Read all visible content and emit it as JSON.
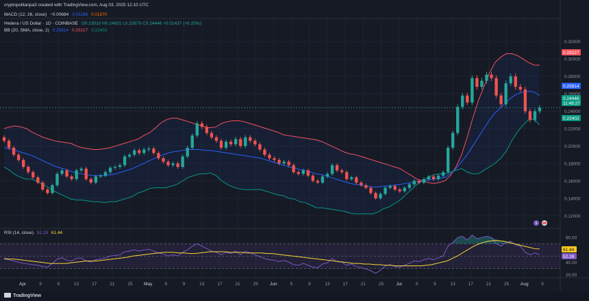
{
  "header": {
    "credit": "cryptopolitanpa3 created with TradingView.com, Aug 03, 2025 12:10 UTC"
  },
  "macd": {
    "title": "MACD (12, 26, close)",
    "v1": "−0.00684",
    "v2": "0.01186",
    "v3": "0.01870"
  },
  "symbol": {
    "title": "Hedera / US Dollar · 1D · COINBASE",
    "ohlc": "O0.23010  H0.24831  L0.22679  C0.24446  +0.01437 (+6.25%)"
  },
  "bb": {
    "title": "BB (20, SMA, close, 2)",
    "basis": "0.25814",
    "upper": "0.29227",
    "lower": "0.22402"
  },
  "rsi": {
    "title": "RSI (14, close)",
    "value": "52.28",
    "ma": "61.44"
  },
  "price_tags": {
    "upper": "0.29227",
    "basis": "0.25814",
    "last": "0.24446",
    "countdown": "11:49:27",
    "lower": "0.22402"
  },
  "rsi_tags": {
    "ma": "61.44",
    "value": "52.28"
  },
  "footer": {
    "brand": "TradingView"
  },
  "colors": {
    "up": "#26a69a",
    "down": "#ef5350",
    "basis": "#2962ff",
    "upper": "#f7525f",
    "lower": "#089981",
    "rsi": "#7e57c2",
    "rsi_ma": "#fdd835"
  },
  "chart_data": {
    "type": "candlestick",
    "price_axis": {
      "ticks": [
        0.12,
        0.14,
        0.16,
        0.18,
        0.2,
        0.22,
        0.24,
        0.26,
        0.28,
        0.3,
        0.32
      ],
      "range": [
        0.11,
        0.33
      ]
    },
    "rsi_axis": {
      "ticks": [
        20,
        40,
        60,
        80
      ],
      "range": [
        17,
        88
      ],
      "band": [
        30,
        70
      ]
    },
    "x_labels": [
      "Apr",
      "5",
      "9",
      "13",
      "17",
      "21",
      "25",
      "May",
      "5",
      "9",
      "13",
      "17",
      "21",
      "25",
      "Jun",
      "5",
      "9",
      "13",
      "17",
      "21",
      "25",
      "Jul",
      "5",
      "9",
      "13",
      "17",
      "21",
      "25",
      "Aug",
      "5"
    ],
    "close": [
      0.206,
      0.198,
      0.19,
      0.184,
      0.176,
      0.17,
      0.164,
      0.158,
      0.15,
      0.146,
      0.155,
      0.168,
      0.172,
      0.165,
      0.162,
      0.172,
      0.174,
      0.162,
      0.158,
      0.165,
      0.166,
      0.17,
      0.175,
      0.176,
      0.178,
      0.188,
      0.19,
      0.195,
      0.192,
      0.196,
      0.197,
      0.192,
      0.186,
      0.182,
      0.178,
      0.18,
      0.176,
      0.188,
      0.198,
      0.212,
      0.226,
      0.222,
      0.215,
      0.21,
      0.206,
      0.198,
      0.205,
      0.202,
      0.208,
      0.2,
      0.21,
      0.206,
      0.202,
      0.196,
      0.19,
      0.186,
      0.184,
      0.18,
      0.182,
      0.178,
      0.17,
      0.168,
      0.172,
      0.166,
      0.16,
      0.158,
      0.165,
      0.168,
      0.178,
      0.172,
      0.17,
      0.162,
      0.164,
      0.158,
      0.155,
      0.152,
      0.146,
      0.14,
      0.145,
      0.152,
      0.154,
      0.15,
      0.148,
      0.152,
      0.156,
      0.16,
      0.158,
      0.162,
      0.165,
      0.162,
      0.166,
      0.17,
      0.198,
      0.215,
      0.245,
      0.258,
      0.25,
      0.278,
      0.268,
      0.275,
      0.282,
      0.278,
      0.258,
      0.248,
      0.272,
      0.28,
      0.268,
      0.265,
      0.24,
      0.23,
      0.24,
      0.244
    ],
    "bb_upper": [
      0.22,
      0.222,
      0.223,
      0.222,
      0.22,
      0.216,
      0.213,
      0.21,
      0.208,
      0.206,
      0.205,
      0.204,
      0.203,
      0.2,
      0.198,
      0.197,
      0.196,
      0.196,
      0.197,
      0.198,
      0.2,
      0.202,
      0.204,
      0.206,
      0.208,
      0.212,
      0.215,
      0.22,
      0.226,
      0.23,
      0.232,
      0.232,
      0.23,
      0.228,
      0.226,
      0.224,
      0.222,
      0.221,
      0.222,
      0.226,
      0.228,
      0.229,
      0.229,
      0.228,
      0.226,
      0.224,
      0.222,
      0.22,
      0.218,
      0.216,
      0.213,
      0.212,
      0.211,
      0.21,
      0.209,
      0.208,
      0.207,
      0.205,
      0.202,
      0.199,
      0.196,
      0.193,
      0.191,
      0.19,
      0.188,
      0.186,
      0.184,
      0.182,
      0.18,
      0.178,
      0.176,
      0.174,
      0.17,
      0.166,
      0.162,
      0.16,
      0.158,
      0.157,
      0.158,
      0.16,
      0.166,
      0.176,
      0.19,
      0.21,
      0.232,
      0.252,
      0.268,
      0.284,
      0.296,
      0.302,
      0.306,
      0.306,
      0.304,
      0.3,
      0.296,
      0.293,
      0.293
    ],
    "bb_basis": [
      0.198,
      0.197,
      0.195,
      0.193,
      0.191,
      0.189,
      0.186,
      0.183,
      0.18,
      0.177,
      0.175,
      0.173,
      0.171,
      0.169,
      0.168,
      0.167,
      0.166,
      0.166,
      0.166,
      0.167,
      0.168,
      0.17,
      0.172,
      0.174,
      0.177,
      0.18,
      0.183,
      0.186,
      0.189,
      0.191,
      0.193,
      0.194,
      0.195,
      0.196,
      0.196,
      0.196,
      0.195,
      0.195,
      0.194,
      0.193,
      0.192,
      0.191,
      0.19,
      0.189,
      0.188,
      0.187,
      0.186,
      0.184,
      0.182,
      0.18,
      0.178,
      0.176,
      0.175,
      0.173,
      0.172,
      0.17,
      0.168,
      0.167,
      0.165,
      0.163,
      0.161,
      0.159,
      0.157,
      0.156,
      0.155,
      0.154,
      0.153,
      0.153,
      0.154,
      0.154,
      0.155,
      0.156,
      0.157,
      0.158,
      0.159,
      0.16,
      0.161,
      0.162,
      0.163,
      0.164,
      0.168,
      0.174,
      0.182,
      0.19,
      0.2,
      0.21,
      0.22,
      0.23,
      0.238,
      0.244,
      0.25,
      0.256,
      0.26,
      0.262,
      0.263,
      0.262,
      0.258
    ],
    "bb_lower": [
      0.176,
      0.172,
      0.167,
      0.164,
      0.162,
      0.162,
      0.159,
      0.156,
      0.152,
      0.148,
      0.145,
      0.142,
      0.139,
      0.138,
      0.138,
      0.137,
      0.136,
      0.136,
      0.135,
      0.136,
      0.136,
      0.138,
      0.14,
      0.142,
      0.146,
      0.148,
      0.151,
      0.152,
      0.152,
      0.152,
      0.154,
      0.156,
      0.16,
      0.164,
      0.166,
      0.168,
      0.168,
      0.169,
      0.166,
      0.16,
      0.156,
      0.153,
      0.151,
      0.15,
      0.15,
      0.15,
      0.15,
      0.148,
      0.146,
      0.144,
      0.143,
      0.14,
      0.139,
      0.136,
      0.135,
      0.132,
      0.129,
      0.129,
      0.128,
      0.127,
      0.126,
      0.125,
      0.123,
      0.122,
      0.122,
      0.122,
      0.122,
      0.124,
      0.128,
      0.13,
      0.134,
      0.138,
      0.144,
      0.15,
      0.156,
      0.16,
      0.164,
      0.167,
      0.168,
      0.168,
      0.17,
      0.172,
      0.174,
      0.17,
      0.168,
      0.168,
      0.172,
      0.176,
      0.18,
      0.186,
      0.194,
      0.206,
      0.216,
      0.224,
      0.23,
      0.231,
      0.224
    ],
    "rsi": [
      45,
      44,
      42,
      40,
      38,
      37,
      36,
      35,
      33,
      32,
      38,
      45,
      47,
      43,
      42,
      46,
      47,
      42,
      40,
      44,
      45,
      47,
      50,
      51,
      52,
      57,
      58,
      60,
      58,
      60,
      61,
      58,
      55,
      53,
      50,
      52,
      50,
      56,
      60,
      66,
      70,
      66,
      62,
      58,
      56,
      52,
      56,
      54,
      58,
      52,
      58,
      55,
      52,
      49,
      46,
      44,
      43,
      41,
      43,
      40,
      36,
      35,
      38,
      35,
      32,
      31,
      37,
      39,
      46,
      41,
      40,
      35,
      37,
      33,
      31,
      29,
      26,
      22,
      27,
      34,
      36,
      33,
      32,
      35,
      38,
      42,
      41,
      44,
      46,
      44,
      47,
      50,
      66,
      72,
      80,
      82,
      76,
      84,
      78,
      80,
      82,
      80,
      70,
      66,
      72,
      74,
      68,
      66,
      56,
      52,
      55,
      52.28
    ],
    "rsi_ma": [
      46,
      45,
      45,
      44,
      43,
      42,
      41,
      40,
      39,
      38,
      38,
      38,
      38,
      39,
      40,
      41,
      42,
      42,
      42,
      43,
      44,
      45,
      46,
      47,
      48,
      50,
      51,
      52,
      53,
      54,
      55,
      56,
      56,
      56,
      55,
      55,
      54,
      54,
      55,
      56,
      57,
      57,
      57,
      57,
      56,
      56,
      56,
      55,
      55,
      55,
      55,
      54,
      54,
      53,
      52,
      51,
      50,
      49,
      48,
      47,
      46,
      45,
      44,
      43,
      42,
      41,
      40,
      39,
      38,
      38,
      37,
      37,
      36,
      36,
      35,
      35,
      34,
      34,
      34,
      34,
      34,
      34,
      35,
      36,
      38,
      40,
      42,
      46,
      50,
      55,
      60,
      65,
      69,
      72,
      74,
      75,
      75,
      74,
      72,
      70,
      68,
      66,
      64,
      62,
      61.44
    ]
  }
}
